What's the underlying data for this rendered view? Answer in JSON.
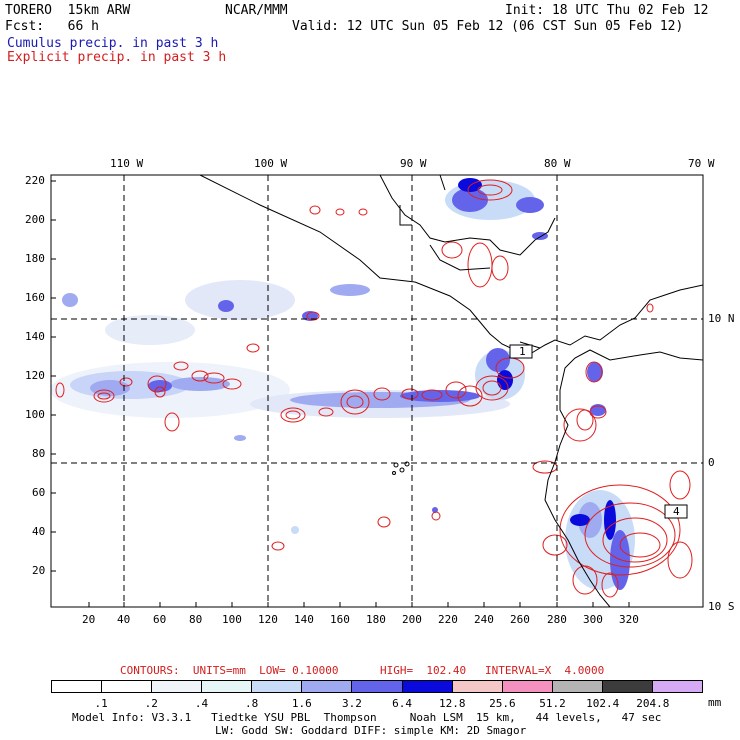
{
  "header": {
    "model": "TORERO  15km ARW",
    "org": "NCAR/MMM",
    "init": "Init: 18 UTC Thu 02 Feb 12",
    "fcst": "Fcst:   66 h",
    "valid": "Valid: 12 UTC Sun 05 Feb 12 (06 CST Sun 05 Feb 12)",
    "cumulus": "Cumulus precip. in past 3 h",
    "explicit": "Explicit precip. in past 3 h"
  },
  "axes": {
    "top_lon_labels": [
      "110 W",
      "100 W",
      "90 W",
      "80 W",
      "70 W"
    ],
    "right_lat_labels": [
      "10 N",
      "0",
      "10 S"
    ],
    "left_y_ticks": [
      "220",
      "200",
      "180",
      "160",
      "140",
      "120",
      "100",
      "80",
      "60",
      "40",
      "20"
    ],
    "bottom_x_ticks": [
      "20",
      "40",
      "60",
      "80",
      "100",
      "120",
      "140",
      "160",
      "180",
      "200",
      "220",
      "240",
      "260",
      "280",
      "300",
      "320"
    ]
  },
  "map_labels": [
    "1",
    "4"
  ],
  "contour_info": {
    "contours": "CONTOURS:  UNITS=mm  LOW= 0.10000",
    "high": "HIGH=  102.40",
    "interval": "INTERVAL=X  4.0000"
  },
  "legend": {
    "labels": [
      ".1",
      ".2",
      ".4",
      ".8",
      "1.6",
      "3.2",
      "6.4",
      "12.8",
      "25.6",
      "51.2",
      "102.4",
      "204.8"
    ],
    "unit": "mm",
    "colors": [
      "#ffffff",
      "#ffffff",
      "#f0f5fa",
      "#e6f6f6",
      "#c8dcf8",
      "#a0aaf0",
      "#6464eb",
      "#0a0adc",
      "#f5c8c8",
      "#f591be",
      "#b4b4b4",
      "#3c3c3c",
      "#d7aaf5"
    ]
  },
  "footer": {
    "line1": "Model Info: V3.3.1   Tiedtke YSU PBL  Thompson     Noah LSM  15 km,   44 levels,   47 sec",
    "line2": "LW: Godd SW: Goddard DIFF: simple KM: 2D Smagor"
  }
}
